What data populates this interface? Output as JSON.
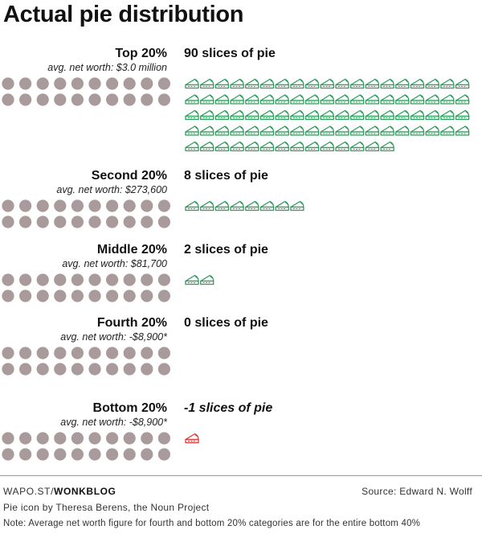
{
  "title": "Actual pie distribution",
  "colors": {
    "dot": "#a99a9b",
    "positive_pie": "#2d9d5b",
    "negative_pie": "#d93a3a",
    "text": "#111111"
  },
  "chart_data": {
    "type": "pictogram",
    "title": "Actual pie distribution",
    "dots_per_group": 20,
    "groups": [
      {
        "label": "Top 20%",
        "subtitle": "avg. net worth: $3.0 million",
        "slices": 90,
        "slices_label": "90 slices of pie"
      },
      {
        "label": "Second 20%",
        "subtitle": "avg. net worth: $273,600",
        "slices": 8,
        "slices_label": "8 slices of pie"
      },
      {
        "label": "Middle 20%",
        "subtitle": "avg. net worth: $81,700",
        "slices": 2,
        "slices_label": "2 slices of pie"
      },
      {
        "label": "Fourth 20%",
        "subtitle": "avg. net worth: -$8,900*",
        "slices": 0,
        "slices_label": "0 slices of pie"
      },
      {
        "label": "Bottom 20%",
        "subtitle": "avg. net worth: -$8,900*",
        "slices": -1,
        "slices_label": "-1 slices of pie"
      }
    ]
  },
  "footer": {
    "brand_prefix": "WAPO.ST/",
    "brand_bold": "WONKBLOG",
    "source": "Source: Edward N. Wolff",
    "credit": "Pie icon by Theresa Berens, the Noun Project",
    "note": "Note: Average net worth figure for fourth and bottom 20% categories are for the entire bottom 40%"
  }
}
